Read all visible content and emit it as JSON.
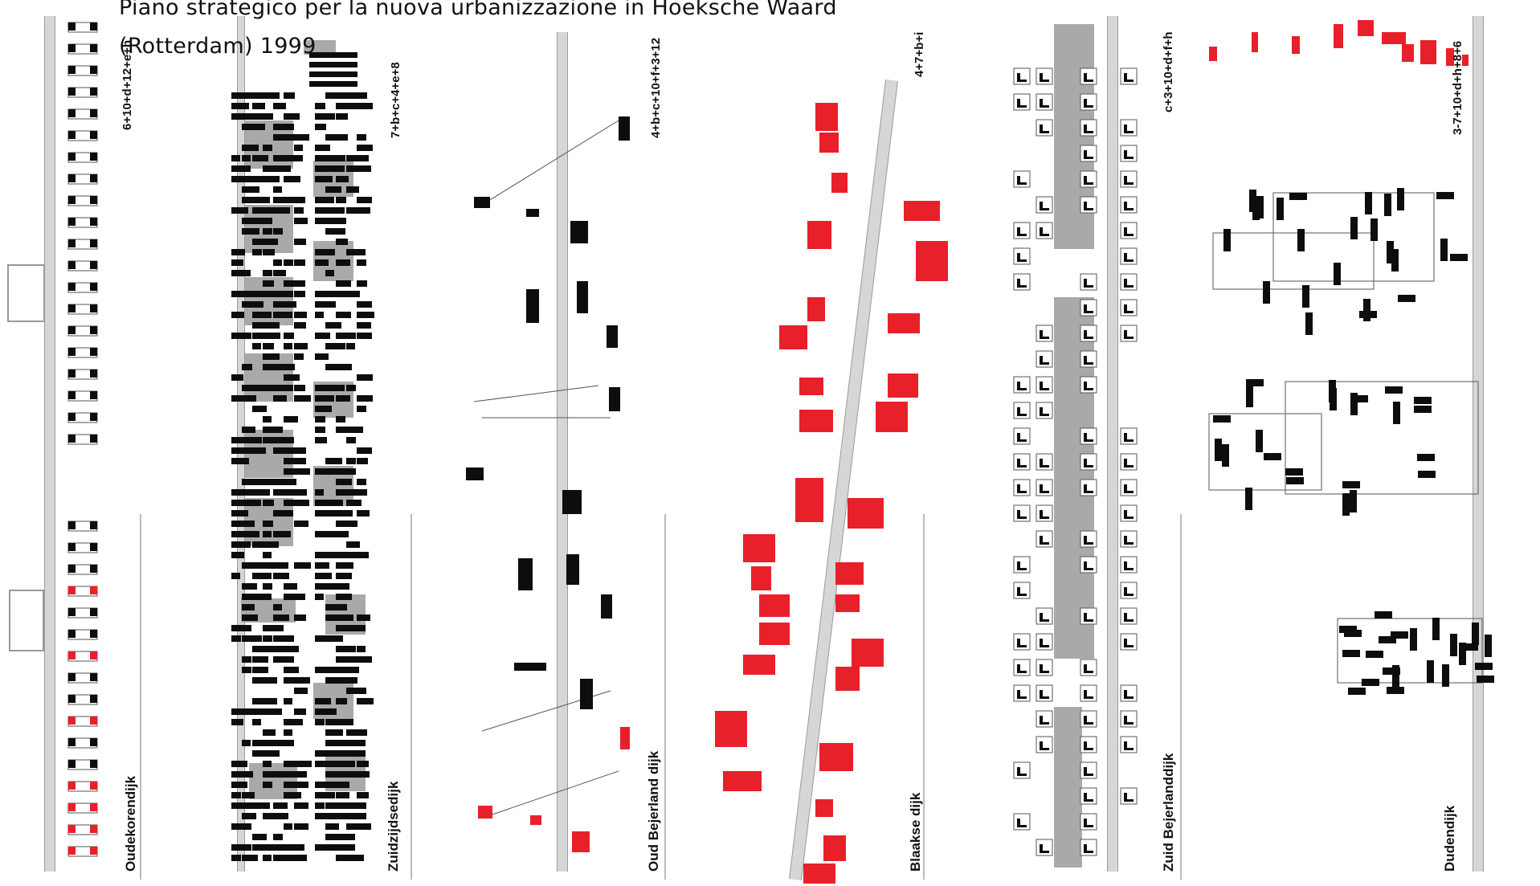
{
  "title": {
    "line1": "Piano strategico per la nuova urbanizzazione in Hoeksche Waard",
    "line2": "(Rotterdam) 1999"
  },
  "strips": [
    {
      "name": "Oudekorendijk",
      "formula": "6+10+d+12+e+h"
    },
    {
      "name": "Zuidzijdsedijk",
      "formula": "7+b+c+4+e+8"
    },
    {
      "name": "Oud Bejerland dijk",
      "formula": "4+b+c+10+f+3+12"
    },
    {
      "name": "Blaakse dijk",
      "formula": "4+7+b+i"
    },
    {
      "name": "Zuid Bejerlanddijk",
      "formula": "c+3+10+d+f+h"
    },
    {
      "name": "Dudendijk",
      "formula": "3-7+10+d+h+8+6"
    }
  ],
  "colors": {
    "red": "#e8202a",
    "black": "#0d0d0d",
    "gray": "#a9a9a9",
    "road": "#d6d6d6"
  }
}
